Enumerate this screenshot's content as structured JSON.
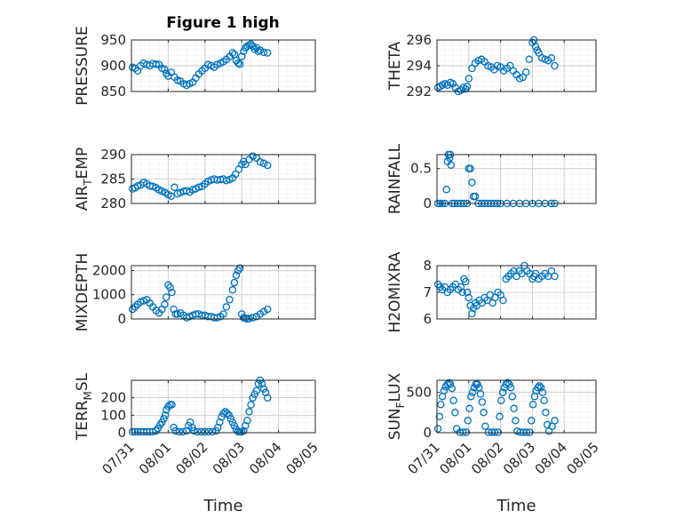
{
  "title": "Figure 1 high",
  "marker_color": "#0072bd",
  "chart_data": [
    {
      "type": "scatter",
      "ylabel": "PRESSURE",
      "ylim": [
        850,
        950
      ],
      "yticks": [
        850,
        900,
        950
      ],
      "xlim": [
        0,
        5
      ],
      "xticks": [],
      "xlabel": "",
      "x": [
        0.03,
        0.1,
        0.17,
        0.25,
        0.33,
        0.42,
        0.5,
        0.58,
        0.67,
        0.75,
        0.83,
        0.9,
        0.95,
        1.0,
        1.08,
        1.17,
        1.25,
        1.33,
        1.42,
        1.5,
        1.58,
        1.67,
        1.75,
        1.83,
        1.92,
        2.0,
        2.08,
        2.17,
        2.25,
        2.33,
        2.42,
        2.5,
        2.58,
        2.67,
        2.75,
        2.8,
        2.85,
        2.9,
        2.95,
        3.0,
        3.05,
        3.1,
        3.15,
        3.2,
        3.25,
        3.3,
        3.35,
        3.4,
        3.45,
        3.5,
        3.6,
        3.7
      ],
      "y": [
        897,
        895,
        890,
        900,
        905,
        902,
        900,
        904,
        903,
        902,
        895,
        893,
        885,
        880,
        887,
        878,
        872,
        870,
        865,
        862,
        865,
        868,
        876,
        884,
        890,
        895,
        902,
        900,
        897,
        902,
        905,
        908,
        912,
        918,
        925,
        922,
        910,
        905,
        903,
        918,
        928,
        935,
        938,
        940,
        942,
        938,
        932,
        935,
        928,
        930,
        926,
        925
      ]
    },
    {
      "type": "scatter",
      "ylabel": "THETA",
      "ylim": [
        292,
        296
      ],
      "yticks": [
        292,
        294,
        296
      ],
      "xlim": [
        0,
        5
      ],
      "xticks": [],
      "xlabel": "",
      "x": [
        0.03,
        0.1,
        0.17,
        0.25,
        0.33,
        0.42,
        0.5,
        0.58,
        0.67,
        0.75,
        0.83,
        0.9,
        0.95,
        1.0,
        1.1,
        1.2,
        1.3,
        1.4,
        1.5,
        1.6,
        1.7,
        1.8,
        1.9,
        2.0,
        2.1,
        2.2,
        2.3,
        2.4,
        2.5,
        2.6,
        2.7,
        2.8,
        2.9,
        3.0,
        3.05,
        3.1,
        3.15,
        3.2,
        3.3,
        3.4,
        3.5,
        3.6,
        3.7
      ],
      "y": [
        292.3,
        292.4,
        292.5,
        292.6,
        292.5,
        292.7,
        292.6,
        292.3,
        292.0,
        292.1,
        292.3,
        292.2,
        292.4,
        293.0,
        293.8,
        294.2,
        294.4,
        294.5,
        294.3,
        294.0,
        293.9,
        293.7,
        294.0,
        293.9,
        293.6,
        293.8,
        294.0,
        293.6,
        293.3,
        293.0,
        293.1,
        293.5,
        294.5,
        295.8,
        296.0,
        295.5,
        295.2,
        295.0,
        294.6,
        294.5,
        294.4,
        294.6,
        294.0
      ]
    },
    {
      "type": "scatter",
      "ylabel": "AIR_TEMP",
      "ylim": [
        280,
        290
      ],
      "yticks": [
        280,
        285,
        290
      ],
      "xlim": [
        0,
        5
      ],
      "xticks": [],
      "xlabel": "",
      "x": [
        0.03,
        0.1,
        0.17,
        0.25,
        0.33,
        0.42,
        0.5,
        0.58,
        0.67,
        0.75,
        0.83,
        0.92,
        1.0,
        1.08,
        1.17,
        1.25,
        1.33,
        1.42,
        1.5,
        1.58,
        1.67,
        1.75,
        1.83,
        1.92,
        2.0,
        2.08,
        2.17,
        2.25,
        2.33,
        2.42,
        2.5,
        2.58,
        2.67,
        2.75,
        2.83,
        2.92,
        3.0,
        3.05,
        3.1,
        3.2,
        3.3,
        3.4,
        3.5,
        3.6,
        3.7
      ],
      "y": [
        283.0,
        283.2,
        283.6,
        283.8,
        284.3,
        284.0,
        283.6,
        283.5,
        283.2,
        282.8,
        282.5,
        282.2,
        281.8,
        281.5,
        283.3,
        282.0,
        282.2,
        282.5,
        282.6,
        282.3,
        282.8,
        283.0,
        283.3,
        283.5,
        284.0,
        284.5,
        284.8,
        285.0,
        284.8,
        284.9,
        285.0,
        284.7,
        284.9,
        285.2,
        286.0,
        287.0,
        288.0,
        288.6,
        288.0,
        289.0,
        289.7,
        289.3,
        288.5,
        288.2,
        287.8
      ]
    },
    {
      "type": "scatter",
      "ylabel": "RAINFALL",
      "ylim": [
        0,
        0.7
      ],
      "yticks": [
        0,
        0.5
      ],
      "xlim": [
        0,
        5
      ],
      "xticks": [],
      "xlabel": "",
      "x": [
        0.03,
        0.1,
        0.17,
        0.25,
        0.3,
        0.33,
        0.36,
        0.4,
        0.42,
        0.44,
        0.48,
        0.55,
        0.65,
        0.75,
        0.85,
        0.95,
        1.0,
        1.05,
        1.1,
        1.15,
        1.2,
        1.3,
        1.4,
        1.5,
        1.6,
        1.7,
        1.8,
        1.9,
        2.0,
        2.2,
        2.4,
        2.6,
        2.8,
        3.0,
        3.2,
        3.4,
        3.6,
        3.7
      ],
      "y": [
        0,
        0,
        0,
        0,
        0.2,
        0.6,
        0.7,
        0.65,
        0.7,
        0.55,
        0,
        0,
        0,
        0,
        0,
        0,
        0.5,
        0.5,
        0.3,
        0.1,
        0.1,
        0,
        0,
        0,
        0,
        0,
        0,
        0,
        0,
        0,
        0,
        0,
        0,
        0,
        0,
        0,
        0,
        0
      ]
    },
    {
      "type": "scatter",
      "ylabel": "MIXDEPTH",
      "ylim": [
        0,
        2200
      ],
      "yticks": [
        0,
        1000,
        2000
      ],
      "xlim": [
        0,
        5
      ],
      "xticks": [],
      "xlabel": "",
      "x": [
        0.03,
        0.1,
        0.17,
        0.25,
        0.33,
        0.42,
        0.5,
        0.58,
        0.67,
        0.75,
        0.83,
        0.9,
        0.95,
        1.0,
        1.05,
        1.1,
        1.15,
        1.2,
        1.25,
        1.33,
        1.42,
        1.5,
        1.58,
        1.67,
        1.75,
        1.83,
        1.92,
        2.0,
        2.08,
        2.17,
        2.25,
        2.33,
        2.42,
        2.5,
        2.58,
        2.67,
        2.75,
        2.8,
        2.85,
        2.9,
        2.95,
        3.0,
        3.05,
        3.1,
        3.15,
        3.2,
        3.3,
        3.4,
        3.5,
        3.6,
        3.7
      ],
      "y": [
        400,
        500,
        600,
        700,
        750,
        800,
        650,
        500,
        350,
        250,
        400,
        600,
        900,
        1400,
        1300,
        1100,
        400,
        200,
        200,
        250,
        150,
        50,
        100,
        150,
        200,
        200,
        150,
        150,
        100,
        100,
        50,
        50,
        100,
        200,
        500,
        800,
        1200,
        1500,
        1800,
        2000,
        2100,
        200,
        50,
        30,
        0,
        20,
        50,
        100,
        200,
        300,
        400
      ]
    },
    {
      "type": "scatter",
      "ylabel": "H2OMIXRA",
      "ylim": [
        6,
        8
      ],
      "yticks": [
        6,
        7,
        8
      ],
      "xlim": [
        0,
        5
      ],
      "xticks": [],
      "xlabel": "",
      "x": [
        0.03,
        0.1,
        0.17,
        0.25,
        0.33,
        0.42,
        0.5,
        0.58,
        0.67,
        0.75,
        0.8,
        0.85,
        0.9,
        0.95,
        1.0,
        1.05,
        1.1,
        1.15,
        1.2,
        1.25,
        1.33,
        1.42,
        1.5,
        1.58,
        1.67,
        1.75,
        1.83,
        1.92,
        2.0,
        2.08,
        2.17,
        2.25,
        2.33,
        2.42,
        2.5,
        2.58,
        2.67,
        2.75,
        2.83,
        2.92,
        3.0,
        3.05,
        3.1,
        3.2,
        3.3,
        3.4,
        3.5,
        3.6,
        3.7
      ],
      "y": [
        7.3,
        7.2,
        7.1,
        7.2,
        7.0,
        7.1,
        7.2,
        7.3,
        7.1,
        7.2,
        7.0,
        7.5,
        7.4,
        7.0,
        6.8,
        6.5,
        6.2,
        6.4,
        6.6,
        6.5,
        6.7,
        6.6,
        6.8,
        6.7,
        6.9,
        6.6,
        6.8,
        7.0,
        6.9,
        6.7,
        7.5,
        7.6,
        7.7,
        7.8,
        7.6,
        7.8,
        7.7,
        8.0,
        7.8,
        7.7,
        7.5,
        7.6,
        7.7,
        7.5,
        7.6,
        7.7,
        7.6,
        7.8,
        7.6
      ]
    },
    {
      "type": "scatter",
      "ylabel": "TERR_MSL",
      "ylim": [
        0,
        300
      ],
      "yticks": [
        0,
        100,
        200
      ],
      "xlim": [
        0,
        5
      ],
      "xticks": [
        "07/31",
        "08/01",
        "08/02",
        "08/03",
        "08/04",
        "08/05"
      ],
      "xlabel": "Time",
      "x": [
        0.03,
        0.1,
        0.17,
        0.25,
        0.33,
        0.42,
        0.5,
        0.58,
        0.67,
        0.72,
        0.78,
        0.83,
        0.88,
        0.92,
        0.95,
        1.0,
        1.05,
        1.1,
        1.15,
        1.2,
        1.3,
        1.4,
        1.5,
        1.55,
        1.6,
        1.65,
        1.7,
        1.8,
        1.9,
        2.0,
        2.1,
        2.2,
        2.3,
        2.35,
        2.4,
        2.45,
        2.5,
        2.55,
        2.6,
        2.65,
        2.7,
        2.75,
        2.8,
        2.85,
        2.9,
        2.95,
        3.0,
        3.05,
        3.1,
        3.15,
        3.2,
        3.25,
        3.3,
        3.35,
        3.4,
        3.45,
        3.5,
        3.55,
        3.6,
        3.65,
        3.7
      ],
      "y": [
        5,
        5,
        5,
        5,
        5,
        5,
        5,
        5,
        10,
        25,
        45,
        60,
        80,
        100,
        130,
        150,
        160,
        160,
        30,
        10,
        5,
        5,
        10,
        40,
        60,
        30,
        10,
        5,
        5,
        5,
        5,
        5,
        10,
        30,
        60,
        90,
        110,
        120,
        110,
        100,
        80,
        60,
        40,
        20,
        5,
        5,
        5,
        10,
        40,
        70,
        120,
        160,
        200,
        220,
        240,
        280,
        300,
        280,
        250,
        230,
        200
      ]
    },
    {
      "type": "scatter",
      "ylabel": "SUN_FLUX",
      "ylim": [
        0,
        650
      ],
      "yticks": [
        0,
        500
      ],
      "xlim": [
        0,
        5
      ],
      "xticks": [
        "07/31",
        "08/01",
        "08/02",
        "08/03",
        "08/04",
        "08/05"
      ],
      "xlabel": "Time",
      "x": [
        0.03,
        0.08,
        0.12,
        0.17,
        0.22,
        0.27,
        0.33,
        0.38,
        0.42,
        0.47,
        0.52,
        0.57,
        0.62,
        0.72,
        0.82,
        0.92,
        0.97,
        1.02,
        1.07,
        1.12,
        1.17,
        1.22,
        1.27,
        1.32,
        1.37,
        1.42,
        1.47,
        1.52,
        1.62,
        1.72,
        1.82,
        1.92,
        1.97,
        2.02,
        2.07,
        2.12,
        2.17,
        2.22,
        2.27,
        2.32,
        2.37,
        2.42,
        2.47,
        2.52,
        2.62,
        2.72,
        2.82,
        2.92,
        2.97,
        3.02,
        3.07,
        3.12,
        3.17,
        3.22,
        3.27,
        3.32,
        3.37,
        3.42,
        3.47,
        3.52,
        3.62,
        3.7
      ],
      "y": [
        50,
        200,
        350,
        450,
        520,
        570,
        600,
        620,
        600,
        550,
        400,
        250,
        50,
        5,
        5,
        5,
        150,
        300,
        450,
        500,
        560,
        600,
        600,
        560,
        480,
        380,
        250,
        80,
        5,
        5,
        5,
        5,
        200,
        400,
        500,
        560,
        600,
        620,
        600,
        560,
        450,
        300,
        150,
        20,
        5,
        5,
        5,
        5,
        150,
        350,
        450,
        520,
        560,
        580,
        560,
        500,
        400,
        250,
        100,
        20,
        80,
        150
      ]
    }
  ]
}
